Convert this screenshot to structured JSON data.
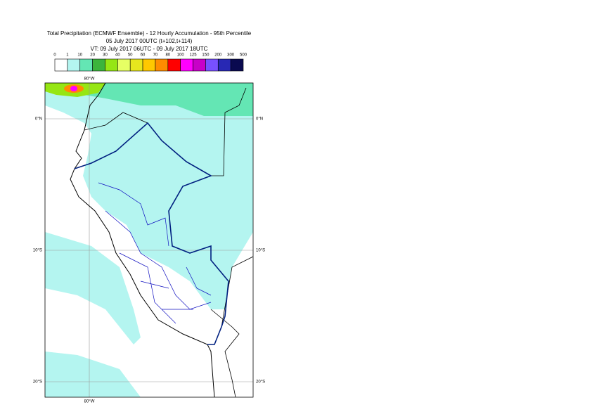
{
  "header": {
    "lines": [
      "Total Precipitation (ECMWF Ensemble) - 12 Hourly Accumulation - 95th Percentile",
      "05 July 2017 00UTC (t+102,t+114)",
      "VT: 09 July 2017 06UTC - 09 July 2017 18UTC"
    ]
  },
  "legend": {
    "labels": [
      "0",
      "1",
      "10",
      "20",
      "30",
      "40",
      "50",
      "60",
      "70",
      "80",
      "100",
      "125",
      "150",
      "200",
      "300",
      "500"
    ],
    "colors": [
      "#ffffff",
      "#b4f5f0",
      "#64e6b4",
      "#3cb43c",
      "#96e614",
      "#e6ff64",
      "#e6e61e",
      "#ffc800",
      "#ff8c00",
      "#ff0000",
      "#ff00ff",
      "#c800c8",
      "#7850ff",
      "#2828b4",
      "#0a0a50"
    ]
  },
  "map": {
    "lon_label": "80°W",
    "lat_labels": [
      "0°N",
      "10°S",
      "20°S"
    ]
  }
}
